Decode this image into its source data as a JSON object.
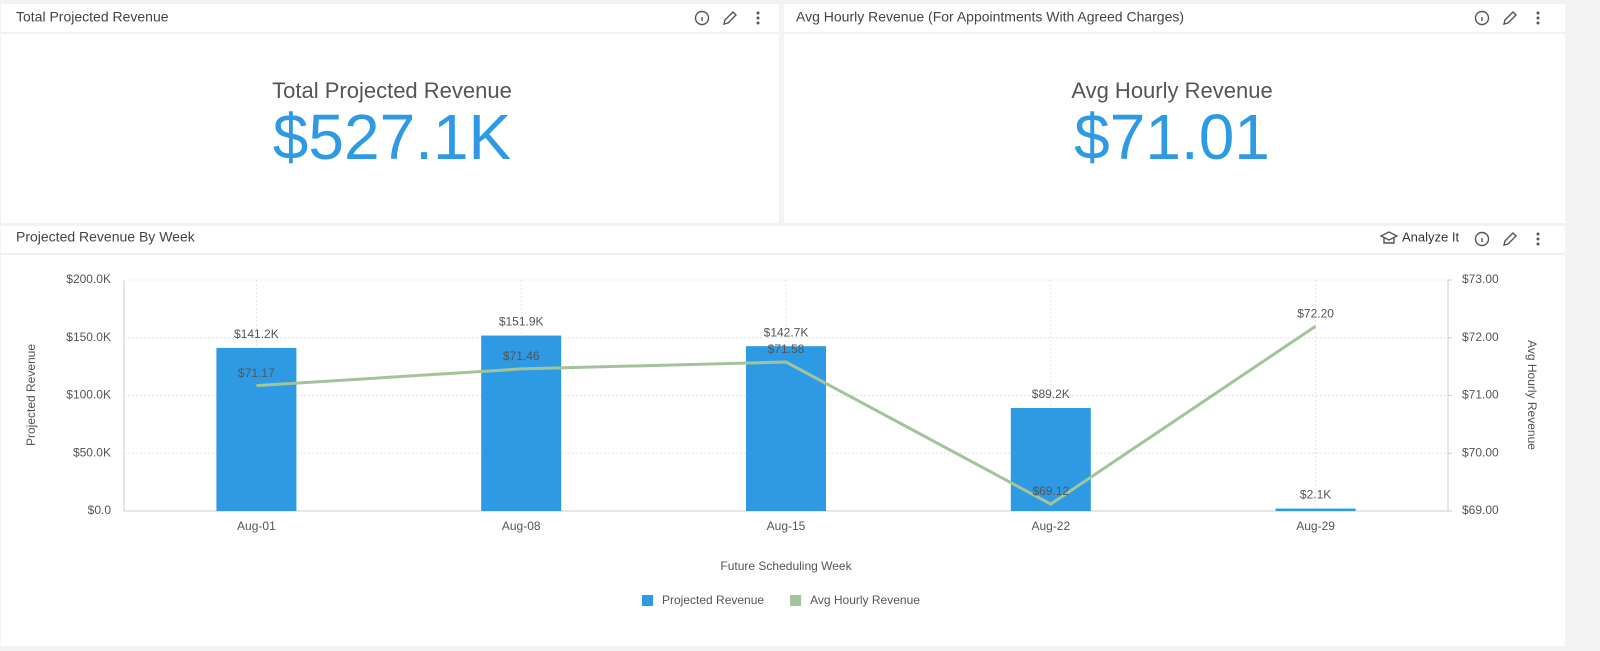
{
  "kpi_tiles": [
    {
      "header": "Total Projected Revenue",
      "label": "Total Projected Revenue",
      "value": "$527.1K"
    },
    {
      "header": "Avg Hourly Revenue (For Appointments With Agreed Charges)",
      "label": "Avg Hourly Revenue",
      "value": "$71.01"
    }
  ],
  "chart_panel": {
    "header": "Projected Revenue By Week",
    "action": "Analyze It"
  },
  "chart_data": {
    "type": "bar",
    "x_label": "Future Scheduling Week",
    "y_label": "Projected Revenue",
    "y2_label": "Avg Hourly Revenue",
    "categories": [
      "Aug-01",
      "Aug-08",
      "Aug-15",
      "Aug-22",
      "Aug-29"
    ],
    "series": [
      {
        "name": "Projected Revenue",
        "type": "bar",
        "color": "#2d9ae3",
        "values": [
          141200,
          151900,
          142700,
          89200,
          2100
        ],
        "value_labels": [
          "$141.2K",
          "$151.9K",
          "$142.7K",
          "$89.2K",
          "$2.1K"
        ]
      },
      {
        "name": "Avg Hourly Revenue",
        "type": "line",
        "axis": "y2",
        "color": "#a3c49a",
        "values": [
          71.17,
          71.46,
          71.58,
          69.12,
          72.2
        ],
        "value_labels": [
          "$71.17",
          "$71.46",
          "$71.58",
          "$69.12",
          "$72.20"
        ]
      }
    ],
    "ylim": [
      0,
      200000
    ],
    "yticks": [
      {
        "value": 0,
        "label": "$0.0"
      },
      {
        "value": 50000,
        "label": "$50.0K"
      },
      {
        "value": 100000,
        "label": "$100.0K"
      },
      {
        "value": 150000,
        "label": "$150.0K"
      },
      {
        "value": 200000,
        "label": "$200.0K"
      }
    ],
    "y2lim": [
      69,
      73
    ],
    "y2ticks": [
      {
        "value": 69,
        "label": "$69.00"
      },
      {
        "value": 70,
        "label": "$70.00"
      },
      {
        "value": 71,
        "label": "$71.00"
      },
      {
        "value": 72,
        "label": "$72.00"
      },
      {
        "value": 73,
        "label": "$73.00"
      }
    ],
    "grid": true,
    "legend": "bottom"
  }
}
